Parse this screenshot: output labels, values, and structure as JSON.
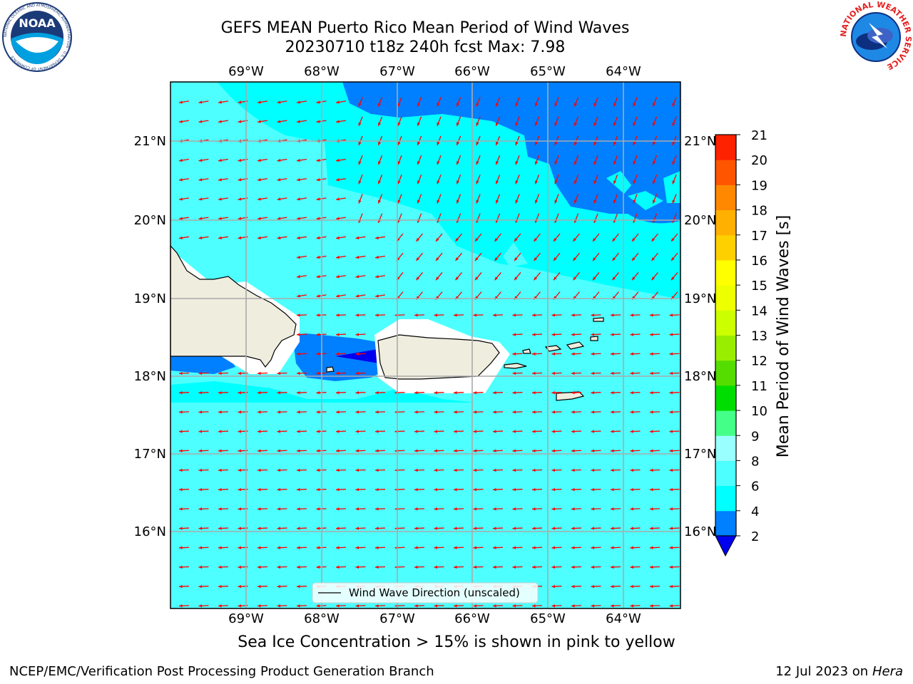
{
  "header": {
    "title_line1": "GEFS MEAN Puerto Rico Mean Period of Wind Waves",
    "title_line2": "20230710 t18z 240h fcst   Max: 7.98"
  },
  "map": {
    "lon_labels": [
      "69°W",
      "68°W",
      "67°W",
      "66°W",
      "65°W",
      "64°W"
    ],
    "lat_labels": [
      "21°N",
      "20°N",
      "19°N",
      "18°N",
      "17°N",
      "16°N"
    ],
    "legend_label": "Wind Wave Direction (unscaled)",
    "vector_color": "#ff0000",
    "land_color": "#efedde",
    "vector_direction": "from east-northeast toward west-southwest"
  },
  "colorbar": {
    "label": "Mean Period of Wind Waves [s]",
    "ticks": [
      "21",
      "20",
      "19",
      "18",
      "17",
      "16",
      "15",
      "14",
      "13",
      "12",
      "11",
      "10",
      "9",
      "8",
      "6",
      "4",
      "2"
    ],
    "colors": [
      "#0000ee",
      "#007fff",
      "#00ffff",
      "#4dffff",
      "#99ffff",
      "#44ff88",
      "#00dd00",
      "#55dd00",
      "#99ee00",
      "#ccff00",
      "#eeff00",
      "#ffff00",
      "#ffd000",
      "#ffb000",
      "#ff8800",
      "#ff5500",
      "#ff2200",
      "#ff0000"
    ]
  },
  "note": "Sea Ice Concentration > 15% is shown in pink to yellow",
  "footer": {
    "left": "NCEP/EMC/Verification Post Processing Product Generation Branch",
    "date": "12 Jul 2023 on ",
    "machine": "Hera"
  },
  "logos": {
    "noaa_text": "NOAA",
    "noaa_ring_text": "NATIONAL OCEANIC AND ATMOSPHERIC ADMINISTRATION · U.S. DEPARTMENT OF COMMERCE",
    "nws_ring_text": "NATIONAL WEATHER SERVICE"
  }
}
